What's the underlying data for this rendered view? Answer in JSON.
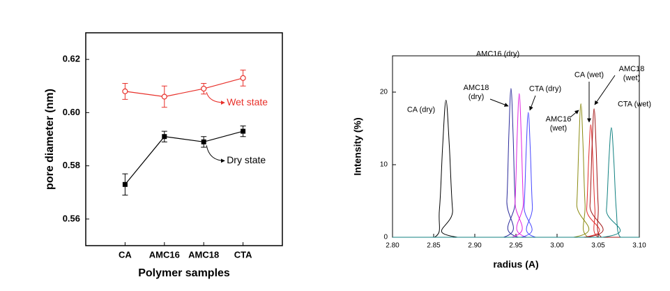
{
  "chart_data": [
    {
      "type": "line",
      "x_label": "Polymer samples",
      "y_label": "pore diameter (nm)",
      "categories": [
        "CA",
        "AMC16",
        "AMC18",
        "CTA"
      ],
      "ylim": [
        0.55,
        0.63
      ],
      "yticks": [
        0.56,
        0.58,
        {
          "value": 0.6,
          "label": "0.60"
        },
        0.62
      ],
      "series": [
        {
          "name": "Wet state",
          "color": "#e8302a",
          "marker": "open-circle",
          "values": [
            0.608,
            0.606,
            0.609,
            0.613
          ],
          "errors": [
            0.003,
            0.004,
            0.002,
            0.003
          ]
        },
        {
          "name": "Dry state",
          "color": "#000000",
          "marker": "filled-square",
          "values": [
            0.573,
            0.591,
            0.589,
            0.593
          ],
          "errors": [
            0.004,
            0.002,
            0.002,
            0.002
          ]
        }
      ]
    },
    {
      "type": "line",
      "x_label": "radius (A)",
      "y_label": "Intensity (%)",
      "xlim": [
        2.8,
        3.1
      ],
      "xticks": [
        {
          "value": 2.8,
          "label": "2.80"
        },
        2.85,
        {
          "value": 2.9,
          "label": "2.90"
        },
        2.95,
        {
          "value": 3,
          "label": "3.00"
        },
        3.05,
        {
          "value": 3.1,
          "label": "3.10"
        }
      ],
      "ylim": [
        0,
        25
      ],
      "yticks": [
        0,
        10,
        20
      ],
      "series": [
        {
          "name": "CA (dry)",
          "color": "#000000",
          "x": [
            2.8,
            2.851,
            2.857,
            2.861,
            2.865,
            2.869,
            2.873,
            2.879,
            3.1
          ],
          "values": [
            0,
            0,
            3.8,
            12.7,
            18.9,
            12.7,
            3.8,
            0,
            0
          ]
        },
        {
          "name": "AMC18 (dry)",
          "color": "#2a2a9a",
          "x": [
            2.8,
            2.935,
            2.939,
            2.9415,
            2.944,
            2.9465,
            2.949,
            2.953,
            3.1
          ],
          "values": [
            0,
            0,
            5.1,
            14.4,
            20.5,
            14.4,
            5.1,
            0,
            0
          ]
        },
        {
          "name": "AMC16 (dry)",
          "color": "#e020e0",
          "x": [
            2.8,
            2.945,
            2.949,
            2.9515,
            2.954,
            2.9565,
            2.959,
            2.963,
            3.1
          ],
          "values": [
            0,
            0,
            5.0,
            13.9,
            19.8,
            13.9,
            5.0,
            0,
            0
          ]
        },
        {
          "name": "CTA (dry)",
          "color": "#4646ff",
          "x": [
            2.8,
            2.956,
            2.96,
            2.9625,
            2.965,
            2.9675,
            2.97,
            2.974,
            3.1
          ],
          "values": [
            0,
            0,
            4.3,
            12.0,
            17.2,
            12.0,
            4.3,
            0,
            0
          ]
        },
        {
          "name": "AMC16 (wet)",
          "color": "#8a8a10",
          "x": [
            2.8,
            3.02,
            3.024,
            3.0265,
            3.029,
            3.0315,
            3.034,
            3.038,
            3.1
          ],
          "values": [
            0,
            0,
            4.6,
            12.9,
            18.4,
            12.9,
            4.6,
            0,
            0
          ]
        },
        {
          "name": "CA (wet)",
          "color": "#e02828",
          "x": [
            2.8,
            3.032,
            3.036,
            3.0385,
            3.041,
            3.0435,
            3.046,
            3.05,
            3.1
          ],
          "values": [
            0,
            0,
            3.9,
            10.9,
            15.5,
            10.9,
            3.9,
            0,
            0
          ]
        },
        {
          "name": "AMC18 (wet)",
          "color": "#a01010",
          "x": [
            2.8,
            3.036,
            3.04,
            3.0425,
            3.045,
            3.0475,
            3.05,
            3.054,
            3.1
          ],
          "values": [
            0,
            0,
            4.4,
            12.4,
            17.7,
            12.4,
            4.4,
            0,
            0
          ]
        },
        {
          "name": "CTA (wet)",
          "color": "#108080",
          "x": [
            2.8,
            3.055,
            3.06,
            3.063,
            3.066,
            3.069,
            3.072,
            3.077,
            3.1
          ],
          "values": [
            0,
            0,
            3.8,
            10.6,
            15.1,
            10.6,
            3.8,
            0,
            0
          ]
        }
      ]
    }
  ]
}
